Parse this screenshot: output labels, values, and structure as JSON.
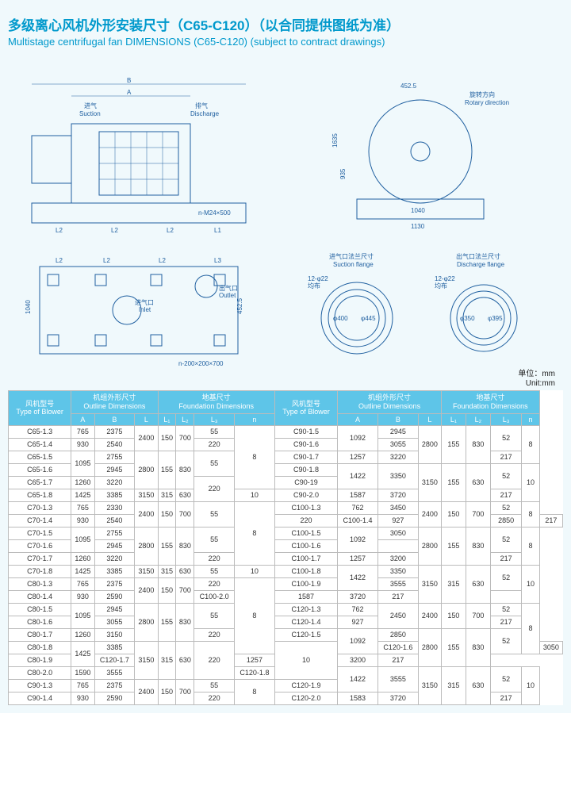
{
  "title_cn": "多级离心风机外形安装尺寸（C65-C120）（以合同提供图纸为准）",
  "title_en": "Multistage centrifugal fan DIMENSIONS (C65-C120) (subject to contract drawings)",
  "diagram": {
    "suction_cn": "进气",
    "suction_en": "Suction",
    "discharge_cn": "排气",
    "discharge_en": "Discharge",
    "rotary_cn": "旋转方向",
    "rotary_en": "Rotary direction",
    "outlet_cn": "出气口",
    "outlet_en": "Outlet",
    "inlet_cn": "进气口",
    "inlet_en": "Inlet",
    "suction_flange_cn": "进气口法兰尺寸",
    "suction_flange_en": "Suction flange",
    "discharge_flange_cn": "出气口法兰尺寸",
    "discharge_flange_en": "Discharge flange",
    "dim_4525": "452.5",
    "dim_1635": "1635",
    "dim_935": "935",
    "dim_1040": "1040",
    "dim_1130": "1130",
    "dim_nM24": "n-M24×500",
    "dim_n200": "n-200×200×700",
    "dim_12phi22": "12-φ22",
    "dim_junbu": "均布",
    "dim_400": "φ400",
    "dim_445": "φ445",
    "dim_395": "φ395",
    "dim_350": "φ350",
    "unit_cn": "单位：mm",
    "unit_en": "Unit:mm"
  },
  "headers": {
    "blower_cn": "风机型号",
    "blower_en": "Type of Blower",
    "outline_cn": "机组外形尺寸",
    "outline_en": "Outline Dimensions",
    "foundation_cn": "地基尺寸",
    "foundation_en": "Foundation Dimensions",
    "A": "A",
    "B": "B",
    "L": "L",
    "L1": "L₁",
    "L2": "L₂",
    "L3": "L₃",
    "n": "n"
  },
  "left": [
    {
      "m": "C65-1.3",
      "A": "765",
      "B": "2375",
      "L": "2400",
      "L1": "150",
      "L2": "700",
      "L3": "55",
      "n": "8",
      "rL": 2,
      "rL1": 2,
      "rL2": 2,
      "rn": 5
    },
    {
      "m": "C65-1.4",
      "A": "930",
      "B": "2540",
      "L3": "220"
    },
    {
      "m": "C65-1.5",
      "A": "1095",
      "B": "2755",
      "L": "2800",
      "L1": "155",
      "L2": "830",
      "L3": "55",
      "rA": 2,
      "rL": 3,
      "rL1": 3,
      "rL2": 3,
      "rL3": 2
    },
    {
      "m": "C65-1.6",
      "B": "2945"
    },
    {
      "m": "C65-1.7",
      "A": "1260",
      "B": "3220",
      "L3": "220",
      "rL3": 2
    },
    {
      "m": "C65-1.8",
      "A": "1425",
      "B": "3385",
      "L": "3150",
      "L1": "315",
      "L2": "630",
      "n": "10",
      "rn": 1
    },
    {
      "m": "C70-1.3",
      "A": "765",
      "B": "2330",
      "L": "2400",
      "L1": "150",
      "L2": "700",
      "L3": "55",
      "n": "8",
      "rL": 2,
      "rL1": 2,
      "rL2": 2,
      "rL3": 2,
      "rn": 5
    },
    {
      "m": "C70-1.4",
      "A": "930",
      "B": "2540",
      "L3": "220"
    },
    {
      "m": "C70-1.5",
      "A": "1095",
      "B": "2755",
      "L": "2800",
      "L1": "155",
      "L2": "830",
      "L3": "55",
      "rA": 2,
      "rL": 3,
      "rL1": 3,
      "rL2": 3,
      "rL3": 2
    },
    {
      "m": "C70-1.6",
      "B": "2945"
    },
    {
      "m": "C70-1.7",
      "A": "1260",
      "B": "3220",
      "L3": "220"
    },
    {
      "m": "C70-1.8",
      "A": "1425",
      "B": "3385",
      "L": "3150",
      "L1": "315",
      "L2": "630",
      "L3": "55",
      "n": "10"
    },
    {
      "m": "C80-1.3",
      "A": "765",
      "B": "2375",
      "L": "2400",
      "L1": "150",
      "L2": "700",
      "L3": "220",
      "n": "8",
      "rL": 2,
      "rL1": 2,
      "rL2": 2,
      "rn": 6
    },
    {
      "m": "C80-1.4",
      "A": "930",
      "B": "2590"
    },
    {
      "m": "C80-1.5",
      "A": "1095",
      "B": "2945",
      "L": "2800",
      "L1": "155",
      "L2": "830",
      "L3": "55",
      "rA": 2,
      "rL": 3,
      "rL1": 3,
      "rL2": 3,
      "rL3": 2
    },
    {
      "m": "C80-1.6",
      "B": "3055"
    },
    {
      "m": "C80-1.7",
      "A": "1260",
      "B": "3150",
      "L3": "220"
    },
    {
      "m": "C80-1.8",
      "A": "1425",
      "B": "3385",
      "L": "3150",
      "L1": "315",
      "L2": "630",
      "L3": "220",
      "n": "10",
      "rA": 2,
      "rL": 3,
      "rL1": 3,
      "rL2": 3,
      "rL3": 3,
      "rn": 3
    },
    {
      "m": "C80-1.9"
    },
    {
      "m": "C80-2.0",
      "A": "1590",
      "B": "3555"
    },
    {
      "m": "C90-1.3",
      "A": "765",
      "B": "2375",
      "L": "2400",
      "L1": "150",
      "L2": "700",
      "L3": "55",
      "n": "8",
      "rL": 2,
      "rL1": 2,
      "rL2": 2,
      "rn": 2
    },
    {
      "m": "C90-1.4",
      "A": "930",
      "B": "2590",
      "L3": "220"
    }
  ],
  "right": [
    {
      "m": "C90-1.5",
      "A": "1092",
      "B": "2945",
      "L": "2800",
      "L1": "155",
      "L2": "830",
      "L3": "52",
      "n": "8",
      "rA": 2,
      "rL": 3,
      "rL1": 3,
      "rL2": 3,
      "rL3": 2,
      "rn": 3
    },
    {
      "m": "C90-1.6",
      "B": "3055"
    },
    {
      "m": "C90-1.7",
      "A": "1257",
      "B": "3220",
      "L3": "217"
    },
    {
      "m": "C90-1.8",
      "A": "1422",
      "B": "3350",
      "L": "3150",
      "L1": "155",
      "L2": "630",
      "L3": "52",
      "n": "10",
      "rA": 2,
      "rB": 2,
      "rL": 3,
      "rL1": 3,
      "rL2": 3,
      "rL3": 2,
      "rn": 3
    },
    {
      "m": "C90-19"
    },
    {
      "m": "C90-2.0",
      "A": "1587",
      "B": "3720",
      "L3": "217"
    },
    {
      "m": "C100-1.3",
      "A": "762",
      "B": "3450",
      "L": "2400",
      "L1": "150",
      "L2": "700",
      "L3": "52",
      "n": "8",
      "rL": 2,
      "rL1": 2,
      "rL2": 2,
      "rn": 2
    },
    {
      "m": "C100-1.4",
      "A": "927",
      "B": "2850",
      "L3": "217"
    },
    {
      "m": "C100-1.5",
      "A": "1092",
      "B": "3050",
      "L": "2800",
      "L1": "155",
      "L2": "830",
      "L3": "52",
      "n": "8",
      "rA": 2,
      "rL": 3,
      "rL1": 3,
      "rL2": 3,
      "rL3": 2,
      "rn": 3
    },
    {
      "m": "C100-1.6"
    },
    {
      "m": "C100-1.7",
      "A": "1257",
      "B": "3200",
      "L3": "217"
    },
    {
      "m": "C100-1.8",
      "A": "1422",
      "B": "3350",
      "L": "3150",
      "L1": "315",
      "L2": "630",
      "L3": "52",
      "n": "10",
      "rA": 2,
      "rL": 3,
      "rL1": 3,
      "rL2": 3,
      "rL3": 2,
      "rn": 3
    },
    {
      "m": "C100-1.9",
      "B": "3555"
    },
    {
      "m": "C100-2.0",
      "A": "1587",
      "B": "3720",
      "L3": "217"
    },
    {
      "m": "C120-1.3",
      "A": "762",
      "B": "2450",
      "L": "2400",
      "L1": "150",
      "L2": "700",
      "L3": "52",
      "n": "8",
      "rB": 2,
      "rL": 2,
      "rL1": 2,
      "rL2": 2,
      "rn": 4
    },
    {
      "m": "C120-1.4",
      "A": "927",
      "L3": "217"
    },
    {
      "m": "C120-1.5",
      "A": "1092",
      "B": "2850",
      "L": "2800",
      "L1": "155",
      "L2": "830",
      "L3": "52",
      "rA": 2,
      "rL": 3,
      "rL1": 3,
      "rL2": 3,
      "rL3": 2
    },
    {
      "m": "C120-1.6",
      "B": "3050"
    },
    {
      "m": "C120-1.7",
      "A": "1257",
      "B": "3200",
      "L3": "217"
    },
    {
      "m": "C120-1.8",
      "A": "1422",
      "B": "3555",
      "L": "3150",
      "L1": "315",
      "L2": "630",
      "L3": "52",
      "n": "10",
      "rA": 2,
      "rB": 2,
      "rL": 3,
      "rL1": 3,
      "rL2": 3,
      "rL3": 2,
      "rn": 3
    },
    {
      "m": "C120-1.9"
    },
    {
      "m": "C120-2.0",
      "A": "1583",
      "B": "3720",
      "L3": "217"
    }
  ]
}
